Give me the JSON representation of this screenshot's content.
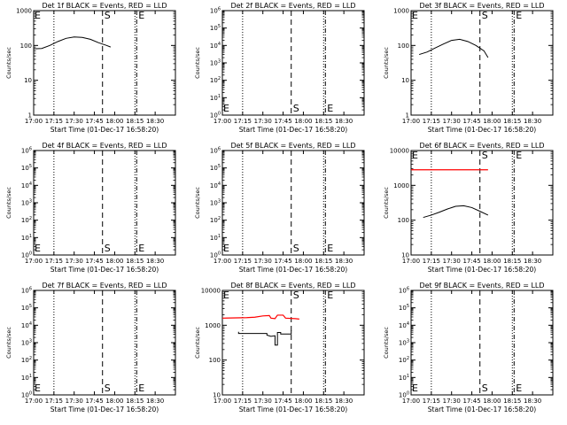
{
  "chart_data": [
    {
      "type": "line",
      "title": "Det 1f BLACK = Events, RED = LLD",
      "xlabel": "Start Time (01-Dec-17 16:58:20)",
      "ylabel": "Counts/sec",
      "scale": "decades",
      "ylim_exp": [
        0,
        3
      ],
      "yticks": [
        {
          "exp": 0,
          "label": "1"
        },
        {
          "exp": 1,
          "label": "10"
        },
        {
          "exp": 2,
          "label": "100"
        },
        {
          "exp": 3,
          "label": "1000"
        }
      ],
      "xticks": [
        "17:00",
        "17:15",
        "17:30",
        "17:45",
        "18:00",
        "18:15",
        "18:30"
      ],
      "markers": {
        "S": "S",
        "E": "E",
        "s_pos": "top",
        "e_pos": "top"
      },
      "events": [
        [
          17.0,
          80
        ],
        [
          17.1,
          82
        ],
        [
          17.2,
          100
        ],
        [
          17.3,
          130
        ],
        [
          17.4,
          160
        ],
        [
          17.5,
          175
        ],
        [
          17.6,
          170
        ],
        [
          17.7,
          150
        ],
        [
          17.8,
          120
        ],
        [
          17.9,
          100
        ],
        [
          17.95,
          90
        ]
      ],
      "lld": []
    },
    {
      "type": "line",
      "title": "Det 2f BLACK = Events, RED = LLD",
      "xlabel": "Start Time (01-Dec-17 16:58:20)",
      "ylabel": "Counts/sec",
      "scale": "sci",
      "ylim_exp": [
        0,
        6
      ],
      "yticks": [
        {
          "exp": 0,
          "label": "10",
          "sup": "0"
        },
        {
          "exp": 1,
          "label": "10",
          "sup": "1"
        },
        {
          "exp": 2,
          "label": "10",
          "sup": "2"
        },
        {
          "exp": 3,
          "label": "10",
          "sup": "3"
        },
        {
          "exp": 4,
          "label": "10",
          "sup": "4"
        },
        {
          "exp": 5,
          "label": "10",
          "sup": "5"
        },
        {
          "exp": 6,
          "label": "10",
          "sup": "6"
        }
      ],
      "xticks": [
        "17:00",
        "17:15",
        "17:30",
        "17:45",
        "18:00",
        "18:15",
        "18:30"
      ],
      "markers": {
        "S": "S",
        "E": "E",
        "s_pos": "bottom",
        "e_pos": "bottom"
      },
      "events": [],
      "lld": []
    },
    {
      "type": "line",
      "title": "Det 3f BLACK = Events, RED = LLD",
      "xlabel": "Start Time (01-Dec-17 16:58:20)",
      "ylabel": "Counts/sec",
      "scale": "decades",
      "ylim_exp": [
        0,
        3
      ],
      "yticks": [
        {
          "exp": 0,
          "label": "1"
        },
        {
          "exp": 1,
          "label": "10"
        },
        {
          "exp": 2,
          "label": "100"
        },
        {
          "exp": 3,
          "label": "1000"
        }
      ],
      "xticks": [
        "17:00",
        "17:15",
        "17:30",
        "17:45",
        "18:00",
        "18:15",
        "18:30"
      ],
      "markers": {
        "S": "S",
        "E": "E",
        "s_pos": "top",
        "e_pos": "top"
      },
      "events": [
        [
          17.1,
          55
        ],
        [
          17.2,
          65
        ],
        [
          17.3,
          85
        ],
        [
          17.4,
          110
        ],
        [
          17.5,
          140
        ],
        [
          17.6,
          150
        ],
        [
          17.7,
          130
        ],
        [
          17.8,
          100
        ],
        [
          17.9,
          70
        ],
        [
          17.95,
          45
        ]
      ],
      "lld": []
    },
    {
      "type": "line",
      "title": "Det 4f BLACK = Events, RED = LLD",
      "xlabel": "Start Time (01-Dec-17 16:58:20)",
      "ylabel": "Counts/sec",
      "scale": "sci",
      "ylim_exp": [
        0,
        6
      ],
      "yticks": [
        {
          "exp": 0,
          "label": "10",
          "sup": "0"
        },
        {
          "exp": 1,
          "label": "10",
          "sup": "1"
        },
        {
          "exp": 2,
          "label": "10",
          "sup": "2"
        },
        {
          "exp": 3,
          "label": "10",
          "sup": "3"
        },
        {
          "exp": 4,
          "label": "10",
          "sup": "4"
        },
        {
          "exp": 5,
          "label": "10",
          "sup": "5"
        },
        {
          "exp": 6,
          "label": "10",
          "sup": "6"
        }
      ],
      "xticks": [
        "17:00",
        "17:15",
        "17:30",
        "17:45",
        "18:00",
        "18:15",
        "18:30"
      ],
      "markers": {
        "S": "S",
        "E": "E",
        "s_pos": "bottom",
        "e_pos": "bottom"
      },
      "events": [],
      "lld": []
    },
    {
      "type": "line",
      "title": "Det 5f BLACK = Events, RED = LLD",
      "xlabel": "Start Time (01-Dec-17 16:58:20)",
      "ylabel": "Counts/sec",
      "scale": "sci",
      "ylim_exp": [
        0,
        6
      ],
      "yticks": [
        {
          "exp": 0,
          "label": "10",
          "sup": "0"
        },
        {
          "exp": 1,
          "label": "10",
          "sup": "1"
        },
        {
          "exp": 2,
          "label": "10",
          "sup": "2"
        },
        {
          "exp": 3,
          "label": "10",
          "sup": "3"
        },
        {
          "exp": 4,
          "label": "10",
          "sup": "4"
        },
        {
          "exp": 5,
          "label": "10",
          "sup": "5"
        },
        {
          "exp": 6,
          "label": "10",
          "sup": "6"
        }
      ],
      "xticks": [
        "17:00",
        "17:15",
        "17:30",
        "17:45",
        "18:00",
        "18:15",
        "18:30"
      ],
      "markers": {
        "S": "S",
        "E": "E",
        "s_pos": "bottom",
        "e_pos": "bottom"
      },
      "events": [],
      "lld": []
    },
    {
      "type": "line",
      "title": "Det 6f BLACK = Events, RED = LLD",
      "xlabel": "Start Time (01-Dec-17 16:58:20)",
      "ylabel": "Counts/sec",
      "scale": "decades",
      "ylim_exp": [
        1,
        4
      ],
      "yticks": [
        {
          "exp": 1,
          "label": "10"
        },
        {
          "exp": 2,
          "label": "100"
        },
        {
          "exp": 3,
          "label": "1000"
        },
        {
          "exp": 4,
          "label": "10000"
        }
      ],
      "xticks": [
        "17:00",
        "17:15",
        "17:30",
        "17:45",
        "18:00",
        "18:15",
        "18:30"
      ],
      "markers": {
        "S": "S",
        "E": "E",
        "s_pos": "top",
        "e_pos": "top"
      },
      "events": [
        [
          17.15,
          120
        ],
        [
          17.25,
          140
        ],
        [
          17.35,
          170
        ],
        [
          17.45,
          210
        ],
        [
          17.55,
          250
        ],
        [
          17.65,
          260
        ],
        [
          17.75,
          230
        ],
        [
          17.85,
          180
        ],
        [
          17.95,
          140
        ]
      ],
      "lld": [
        [
          17.0,
          2800
        ],
        [
          17.95,
          2800
        ]
      ]
    },
    {
      "type": "line",
      "title": "Det 7f BLACK = Events, RED = LLD",
      "xlabel": "Start Time (01-Dec-17 16:58:20)",
      "ylabel": "Counts/sec",
      "scale": "sci",
      "ylim_exp": [
        0,
        6
      ],
      "yticks": [
        {
          "exp": 0,
          "label": "10",
          "sup": "0"
        },
        {
          "exp": 1,
          "label": "10",
          "sup": "1"
        },
        {
          "exp": 2,
          "label": "10",
          "sup": "2"
        },
        {
          "exp": 3,
          "label": "10",
          "sup": "3"
        },
        {
          "exp": 4,
          "label": "10",
          "sup": "4"
        },
        {
          "exp": 5,
          "label": "10",
          "sup": "5"
        },
        {
          "exp": 6,
          "label": "10",
          "sup": "6"
        }
      ],
      "xticks": [
        "17:00",
        "17:15",
        "17:30",
        "17:45",
        "18:00",
        "18:15",
        "18:30"
      ],
      "markers": {
        "S": "S",
        "E": "E",
        "s_pos": "bottom",
        "e_pos": "bottom"
      },
      "events": [],
      "lld": []
    },
    {
      "type": "line",
      "title": "Det 8f BLACK = Events, RED = LLD",
      "xlabel": "Start Time (01-Dec-17 16:58:20)",
      "ylabel": "Counts/sec",
      "scale": "decades",
      "ylim_exp": [
        1,
        4
      ],
      "yticks": [
        {
          "exp": 1,
          "label": "10"
        },
        {
          "exp": 2,
          "label": "100"
        },
        {
          "exp": 3,
          "label": "1000"
        },
        {
          "exp": 4,
          "label": "10000"
        }
      ],
      "xticks": [
        "17:00",
        "17:15",
        "17:30",
        "17:45",
        "18:00",
        "18:15",
        "18:30"
      ],
      "markers": {
        "S": "S",
        "E": "E",
        "s_pos": "top",
        "e_pos": "top"
      },
      "events": [
        [
          17.2,
          650
        ],
        [
          17.2,
          580
        ],
        [
          17.55,
          580
        ],
        [
          17.55,
          520
        ],
        [
          17.6,
          480
        ],
        [
          17.65,
          500
        ],
        [
          17.65,
          270
        ],
        [
          17.68,
          270
        ],
        [
          17.68,
          620
        ],
        [
          17.72,
          620
        ],
        [
          17.72,
          560
        ],
        [
          17.85,
          560
        ],
        [
          17.85,
          700
        ]
      ],
      "lld": [
        [
          17.0,
          1600
        ],
        [
          17.3,
          1650
        ],
        [
          17.4,
          1700
        ],
        [
          17.5,
          1850
        ],
        [
          17.58,
          1900
        ],
        [
          17.6,
          1600
        ],
        [
          17.65,
          1550
        ],
        [
          17.68,
          1950
        ],
        [
          17.75,
          1950
        ],
        [
          17.78,
          1600
        ],
        [
          17.9,
          1550
        ],
        [
          17.95,
          1500
        ]
      ]
    },
    {
      "type": "line",
      "title": "Det 9f BLACK = Events, RED = LLD",
      "xlabel": "Start Time (01-Dec-17 16:58:20)",
      "ylabel": "Counts/sec",
      "scale": "sci",
      "ylim_exp": [
        0,
        6
      ],
      "yticks": [
        {
          "exp": 0,
          "label": "10",
          "sup": "0"
        },
        {
          "exp": 1,
          "label": "10",
          "sup": "1"
        },
        {
          "exp": 2,
          "label": "10",
          "sup": "2"
        },
        {
          "exp": 3,
          "label": "10",
          "sup": "3"
        },
        {
          "exp": 4,
          "label": "10",
          "sup": "4"
        },
        {
          "exp": 5,
          "label": "10",
          "sup": "5"
        },
        {
          "exp": 6,
          "label": "10",
          "sup": "6"
        }
      ],
      "xticks": [
        "17:00",
        "17:15",
        "17:30",
        "17:45",
        "18:00",
        "18:15",
        "18:30"
      ],
      "markers": {
        "S": "S",
        "E": "E",
        "s_pos": "bottom",
        "e_pos": "bottom"
      },
      "events": [],
      "lld": []
    }
  ],
  "shared": {
    "xlim_hours": [
      17.0,
      18.75
    ],
    "dotted_times": [
      17.25,
      18.25
    ],
    "dashed_times": [
      17.85
    ],
    "dashdot_times": [
      18.25
    ],
    "colors": {
      "events": "#000000",
      "lld": "#ff0000",
      "axes": "#000000"
    }
  }
}
